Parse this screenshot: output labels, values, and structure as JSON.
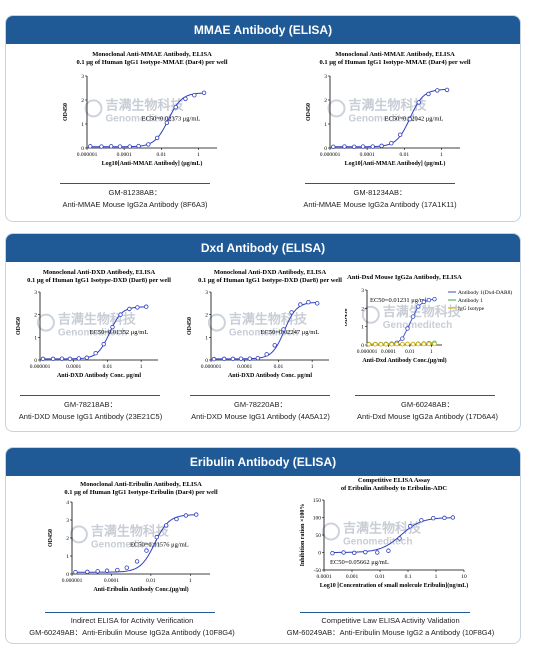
{
  "sections": [
    {
      "title": "MMAE Antibody (ELISA)",
      "color": "#1f5a96"
    },
    {
      "title": "Dxd  Antibody (ELISA)",
      "color": "#1f5a96"
    },
    {
      "title": "Eribulin Antibody (ELISA)",
      "color": "#1f5a96"
    }
  ],
  "watermark": {
    "cn": "吉满生物科技",
    "en": "Genomeditech"
  },
  "captions": {
    "c1": {
      "line1": "GM-81238AB：",
      "line2": "Anti-MMAE Mouse IgG2a Antibody (8F6A3)"
    },
    "c2": {
      "line1": "GM-81234AB：",
      "line2": "Anti-MMAE Mouse IgG2a Antibody (17A1K11)"
    },
    "c3": {
      "line1": "GM-78218AB：",
      "line2": "Anti-DXD Mouse IgG1 Antibody (23E21C5)"
    },
    "c4": {
      "line1": "GM-78220AB：",
      "line2": "Anti-DXD Mouse IgG1 Antibody (4A5A12)"
    },
    "c5": {
      "line1": "GM-60248AB：",
      "line2": "Anti-Dxd Mouse IgG2a Antibody (17D6A4)"
    },
    "c6": {
      "line1": "Indirect ELISA for Activity Verification",
      "line2": "GM-60249AB：Anti-Eribulin Mouse IgG2a Antibody (10F8G4)"
    },
    "c7": {
      "line1": "Competitive Law ELISA Activity Validation",
      "line2": "GM-60249AB：Anti-Eribulin Mouse IgG2 a Antibody (10F8G4)"
    }
  },
  "chart_data": [
    {
      "type": "line",
      "title": "Monoclonal Anti-MMAE Antibody,  ELISA",
      "subtitle": "0.1 μg of Human IgG1 Isotype-MMAE (Dar4) per well",
      "xlabel": "Log10[Anti-MMAE Antibody] (μg/mL)",
      "ylabel": "OD450",
      "xscale": "log",
      "xlim": [
        1e-06,
        10
      ],
      "ylim": [
        0,
        3
      ],
      "x_ticks": [
        "0.000001",
        "0.0001",
        "0.01",
        "1"
      ],
      "y_ticks": [
        "0",
        "1",
        "2",
        "3"
      ],
      "annotation": "EC50=0.02373 μg/mL",
      "ec50": 0.02373,
      "top": 2.3,
      "bottom": 0.05,
      "x": [
        1.5e-06,
        6e-06,
        2e-05,
        6e-05,
        0.0002,
        0.0006,
        0.002,
        0.006,
        0.02,
        0.06,
        0.2,
        0.6,
        2
      ],
      "y": [
        0.07,
        0.06,
        0.07,
        0.06,
        0.06,
        0.08,
        0.15,
        0.42,
        1.05,
        1.7,
        2.05,
        2.2,
        2.3
      ]
    },
    {
      "type": "line",
      "title": "Monoclonal Anti-MMAE Antibody,  ELISA",
      "subtitle": "0.1 μg of Human IgG1 Isotype-MMAE (Dar4) per well",
      "xlabel": "Log10[Anti-MMAE Antibody] (μg/mL)",
      "ylabel": "OD450",
      "xscale": "log",
      "xlim": [
        1e-06,
        10
      ],
      "ylim": [
        0,
        3
      ],
      "x_ticks": [
        "0.000001",
        "0.0001",
        "0.01",
        "1"
      ],
      "y_ticks": [
        "0",
        "1",
        "2",
        "3"
      ],
      "annotation": "EC50=0.02042 μg/mL",
      "ec50": 0.02042,
      "top": 2.45,
      "bottom": 0.05,
      "x": [
        1.5e-06,
        6e-06,
        2e-05,
        6e-05,
        0.0002,
        0.0006,
        0.002,
        0.006,
        0.02,
        0.06,
        0.2,
        0.6,
        2
      ],
      "y": [
        0.05,
        0.06,
        0.05,
        0.06,
        0.06,
        0.09,
        0.2,
        0.55,
        1.2,
        1.9,
        2.25,
        2.4,
        2.42
      ]
    },
    {
      "type": "line",
      "title": "Monoclonal Anti-DXD Antibody,  ELISA",
      "subtitle": "0.1 μg of Human IgG1 Isotype-DXD (Dar8) per well",
      "xlabel": "Anti-DXD Antibody Conc. μg/ml",
      "ylabel": "OD450",
      "xscale": "log",
      "xlim": [
        1e-06,
        10
      ],
      "ylim": [
        0,
        3
      ],
      "x_ticks": [
        "0.000001",
        "0.0001",
        "0.01",
        "1"
      ],
      "y_ticks": [
        "0",
        "1",
        "2",
        "3"
      ],
      "annotation": "EC50=0.01352 μg/mL",
      "ec50": 0.01352,
      "top": 2.35,
      "bottom": 0.05,
      "x": [
        1.5e-06,
        6e-06,
        2e-05,
        6e-05,
        0.0002,
        0.0006,
        0.002,
        0.006,
        0.02,
        0.06,
        0.2,
        0.6,
        2
      ],
      "y": [
        0.05,
        0.05,
        0.06,
        0.05,
        0.07,
        0.1,
        0.3,
        0.7,
        1.45,
        2.0,
        2.25,
        2.32,
        2.35
      ]
    },
    {
      "type": "line",
      "title": "Monoclonal Anti-DXD Antibody,  ELISA",
      "subtitle": "0.1 μg of Human IgG1 Isotype-DXD (Dar8) per well",
      "xlabel": "Anti-DXD Antibody Conc. μg/ml",
      "ylabel": "OD450",
      "xscale": "log",
      "xlim": [
        1e-06,
        10
      ],
      "ylim": [
        0,
        3
      ],
      "x_ticks": [
        "0.000001",
        "0.0001",
        "0.01",
        "1"
      ],
      "y_ticks": [
        "0",
        "1",
        "2",
        "3"
      ],
      "annotation": "EC50=0.02247 μg/mL",
      "ec50": 0.02247,
      "top": 2.55,
      "bottom": 0.05,
      "x": [
        1.5e-06,
        6e-06,
        2e-05,
        6e-05,
        0.0002,
        0.0006,
        0.002,
        0.006,
        0.02,
        0.06,
        0.2,
        0.6,
        2
      ],
      "y": [
        0.04,
        0.05,
        0.05,
        0.06,
        0.06,
        0.08,
        0.25,
        0.65,
        1.35,
        2.1,
        2.45,
        2.55,
        2.5
      ]
    },
    {
      "type": "line",
      "title": "Anti-Dxd Mouse IgG2a Antibody,   ELISA",
      "xlabel": "Anti-Dxd Antibody Conc.(μg/ml)",
      "ylabel": "OD450",
      "xscale": "log",
      "xlim": [
        1e-06,
        10
      ],
      "ylim": [
        0,
        3
      ],
      "x_ticks": [
        "0.000001",
        "0.0001",
        "0.01",
        "1"
      ],
      "y_ticks": [
        "0",
        "1",
        "2",
        "3"
      ],
      "annotation": "EC50=0.01231 μg/ml",
      "legend": [
        "Antibody 1(Dxd-DAR8)",
        "Antibody 1",
        "IgG Isotype"
      ],
      "series": [
        {
          "name": "Antibody 1(Dxd-DAR8)",
          "color": "#3b4fc7",
          "x": [
            1.5e-06,
            6e-06,
            2e-05,
            6e-05,
            0.0002,
            0.0006,
            0.002,
            0.006,
            0.02,
            0.06,
            0.2,
            0.6,
            2
          ],
          "y": [
            0.05,
            0.05,
            0.05,
            0.06,
            0.07,
            0.12,
            0.35,
            0.9,
            1.55,
            2.1,
            2.35,
            2.45,
            2.5
          ]
        },
        {
          "name": "Antibody 1",
          "color": "#2fa84f",
          "x": [
            1.5e-06,
            6e-06,
            2e-05,
            6e-05,
            0.0002,
            0.0006,
            0.002,
            0.006,
            0.02,
            0.06,
            0.2,
            0.6,
            2
          ],
          "y": [
            0.05,
            0.05,
            0.05,
            0.05,
            0.05,
            0.05,
            0.05,
            0.06,
            0.06,
            0.07,
            0.08,
            0.1,
            0.12
          ]
        },
        {
          "name": "IgG Isotype",
          "color": "#e0b400",
          "x": [
            1.5e-06,
            6e-06,
            2e-05,
            6e-05,
            0.0002,
            0.0006,
            0.002,
            0.006,
            0.02,
            0.06,
            0.2,
            0.6,
            2
          ],
          "y": [
            0.04,
            0.04,
            0.04,
            0.04,
            0.04,
            0.05,
            0.05,
            0.05,
            0.05,
            0.05,
            0.05,
            0.06,
            0.06
          ]
        }
      ]
    },
    {
      "type": "line",
      "title": "Monoclonal Anti-Eribulin Antibody,  ELISA",
      "subtitle": "0.1 μg of Human IgG1 Isotype-Eribulin (Dar4) per well",
      "xlabel": "Anti-Eribulin Antibody Conc.(μg/ml)",
      "ylabel": "OD450",
      "xscale": "log",
      "xlim": [
        1e-06,
        10
      ],
      "ylim": [
        0,
        4
      ],
      "x_ticks": [
        "0.000001",
        "0.0001",
        "0.01",
        "1"
      ],
      "y_ticks": [
        "0",
        "1",
        "2",
        "3",
        "4"
      ],
      "annotation": "EC50=0.01576 μg/mL",
      "ec50": 0.01576,
      "top": 3.3,
      "bottom": 0.1,
      "x": [
        1.5e-06,
        6e-06,
        2e-05,
        6e-05,
        0.0002,
        0.0006,
        0.002,
        0.006,
        0.02,
        0.06,
        0.2,
        0.6,
        2
      ],
      "y": [
        0.1,
        0.12,
        0.15,
        0.18,
        0.22,
        0.35,
        0.7,
        1.3,
        2.05,
        2.7,
        3.05,
        3.25,
        3.3
      ]
    },
    {
      "type": "line",
      "title": "Competitive ELISA Assay",
      "subtitle": "of Eribulin Antibody to Eribulin-ADC",
      "xlabel": "Log10 [Concentration of small molecule Eribulin](ng/mL)",
      "ylabel": "Inhibition ration ×100%",
      "xscale": "log",
      "xlim": [
        0.0001,
        10
      ],
      "ylim": [
        -50,
        150
      ],
      "x_ticks": [
        "0.0001",
        "0.001",
        "0.01",
        "0.1",
        "1",
        "10"
      ],
      "y_ticks": [
        "-50",
        "0",
        "50",
        "100",
        "150"
      ],
      "annotation": "EC50=0.05662 μg/mL",
      "ec50": 0.05662,
      "top": 100,
      "bottom": 0,
      "x": [
        0.0002,
        0.0005,
        0.0012,
        0.003,
        0.008,
        0.02,
        0.05,
        0.12,
        0.3,
        0.8,
        2,
        4
      ],
      "y": [
        -2,
        0,
        -1,
        1,
        0,
        5,
        40,
        75,
        92,
        98,
        99,
        100
      ]
    }
  ]
}
